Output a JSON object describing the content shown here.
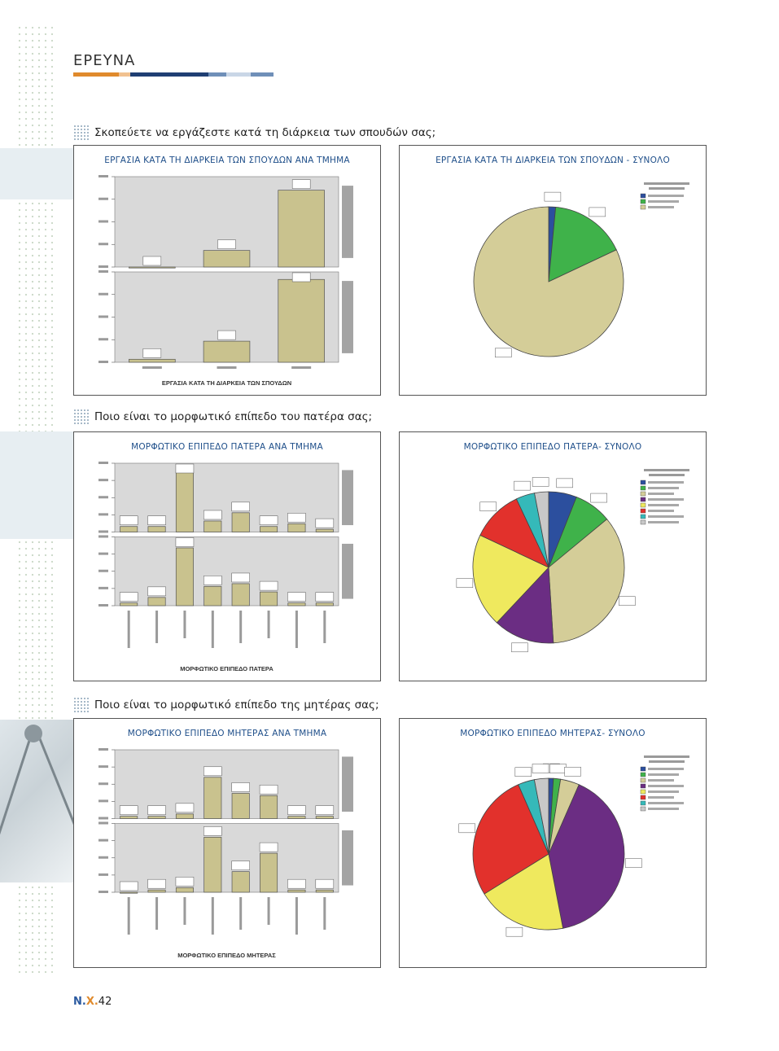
{
  "page": {
    "section": "ΕΡΕΥΝΑ",
    "page_number_prefix": "Ν.",
    "page_number_mid": "Χ.",
    "page_number": "42",
    "stripe_colors": [
      "#e08a2c",
      "#f1c18f",
      "#1f3f73",
      "#6f8fb8",
      "#c9d6e6",
      "#6f8fb8"
    ]
  },
  "questions": [
    {
      "text": "Σκοπεύετε να εργάζεστε κατά τη διάρκεια των σπουδών σας;"
    },
    {
      "text": "Ποιο είναι το μορφωτικό επίπεδο του πατέρα σας;"
    },
    {
      "text": "Ποιο είναι το μορφωτικό επίπεδο της μητέρας σας;"
    }
  ],
  "panels": [
    {
      "title": "ΕΡΓΑΣΙΑ ΚΑΤΑ ΤΗ ΔΙΑΡΚΕΙΑ ΤΩΝ ΣΠΟΥΔΩΝ ΑΝΑ ΤΜΗΜΑ",
      "xlabel": "ΕΡΓΑΣΙΑ ΚΑΤΑ ΤΗ ΔΙΑΡΚΕΙΑ ΤΩΝ ΣΠΟΥΔΩΝ"
    },
    {
      "title": "ΕΡΓΑΣΙΑ ΚΑΤΑ ΤΗ ΔΙΑΡΚΕΙΑ ΤΩΝ ΣΠΟΥΔΩΝ - ΣΥΝΟΛΟ"
    },
    {
      "title": "ΜΟΡΦΩΤΙΚΟ ΕΠΙΠΕΔΟ ΠΑΤΕΡΑ ΑΝΑ ΤΜΗΜΑ",
      "xlabel": "ΜΟΡΦΩΤΙΚΟ ΕΠΙΠΕΔΟ ΠΑΤΕΡΑ"
    },
    {
      "title": "ΜΟΡΦΩΤΙΚΟ ΕΠΙΠΕΔΟ ΠΑΤΕΡΑ- ΣΥΝΟΛΟ"
    },
    {
      "title": "ΜΟΡΦΩΤΙΚΟ ΕΠΙΠΕΔΟ ΜΗΤΕΡΑΣ ΑΝΑ ΤΜΗΜΑ",
      "xlabel": "ΜΟΡΦΩΤΙΚΟ ΕΠΙΠΕΔΟ ΜΗΤΕΡΑΣ"
    },
    {
      "title": "ΜΟΡΦΩΤΙΚΟ ΕΠΙΠΕΔΟ ΜΗΤΕΡΑΣ- ΣΥΝΟΛΟ"
    }
  ],
  "chart_data": [
    {
      "type": "bar",
      "title": "ΕΡΓΑΣΙΑ ΚΑΤΑ ΤΗ ΔΙΑΡΚΕΙΑ ΤΩΝ ΣΠΟΥΔΩΝ ΑΝΑ ΤΜΗΜΑ",
      "ylim": [
        0,
        60
      ],
      "categories": [
        "",
        "",
        ""
      ],
      "series": [
        {
          "name": "",
          "values": [
            0,
            11,
            51
          ]
        },
        {
          "name": "",
          "values": [
            2,
            14,
            55
          ]
        }
      ],
      "bar_color": "#c9c28e"
    },
    {
      "type": "pie",
      "title": "ΕΡΓΑΣΙΑ ΚΑΤΑ ΤΗ ΔΙΑΡΚΕΙΑ ΤΩΝ ΣΠΟΥΔΩΝ - ΣΥΝΟΛΟ",
      "values": [
        1.5,
        16.5,
        82.0
      ],
      "colors": [
        "#2c4f9e",
        "#3fb24a",
        "#d4cd98"
      ]
    },
    {
      "type": "bar",
      "title": "ΜΟΡΦΩΤΙΚΟ ΕΠΙΠΕΔΟ ΠΑΤΕΡΑ ΑΝΑ ΤΜΗΜΑ",
      "ylim": [
        0,
        25
      ],
      "categories": [
        "",
        "",
        "",
        "",
        "",
        "",
        "",
        ""
      ],
      "series": [
        {
          "name": "",
          "values": [
            2,
            2,
            22,
            4,
            7,
            2,
            3,
            1
          ]
        },
        {
          "name": "",
          "values": [
            1,
            3,
            21,
            7,
            8,
            5,
            1,
            1
          ]
        }
      ],
      "bar_color": "#c9c28e"
    },
    {
      "type": "pie",
      "title": "ΜΟΡΦΩΤΙΚΟ ΕΠΙΠΕΔΟ ΠΑΤΕΡΑ- ΣΥΝΟΛΟ",
      "values": [
        6,
        8,
        35,
        13,
        20,
        11,
        4,
        3
      ],
      "colors": [
        "#2c4f9e",
        "#3fb24a",
        "#d4cd98",
        "#6b2d83",
        "#efe95e",
        "#e2312c",
        "#35b9b9",
        "#c8c8c8"
      ]
    },
    {
      "type": "bar",
      "title": "ΜΟΡΦΩΤΙΚΟ ΕΠΙΠΕΔΟ ΜΗΤΕΡΑΣ ΑΝΑ ΤΜΗΜΑ",
      "ylim": [
        0,
        30
      ],
      "categories": [
        "",
        "",
        "",
        "",
        "",
        "",
        "",
        ""
      ],
      "series": [
        {
          "name": "",
          "values": [
            1,
            1,
            2,
            18,
            11,
            10,
            1,
            1
          ]
        },
        {
          "name": "",
          "values": [
            0,
            1,
            2,
            24,
            9,
            17,
            1,
            1
          ]
        }
      ],
      "bar_color": "#c9c28e"
    },
    {
      "type": "pie",
      "title": "ΜΟΡΦΩΤΙΚΟ ΕΠΙΠΕΔΟ ΜΗΤΕΡΑΣ- ΣΥΝΟΛΟ",
      "values": [
        1,
        1.5,
        4,
        40,
        19,
        27,
        3.5,
        3
      ],
      "colors": [
        "#2c4f9e",
        "#3fb24a",
        "#d4cd98",
        "#6b2d83",
        "#efe95e",
        "#e2312c",
        "#35b9b9",
        "#c8c8c8"
      ]
    }
  ]
}
